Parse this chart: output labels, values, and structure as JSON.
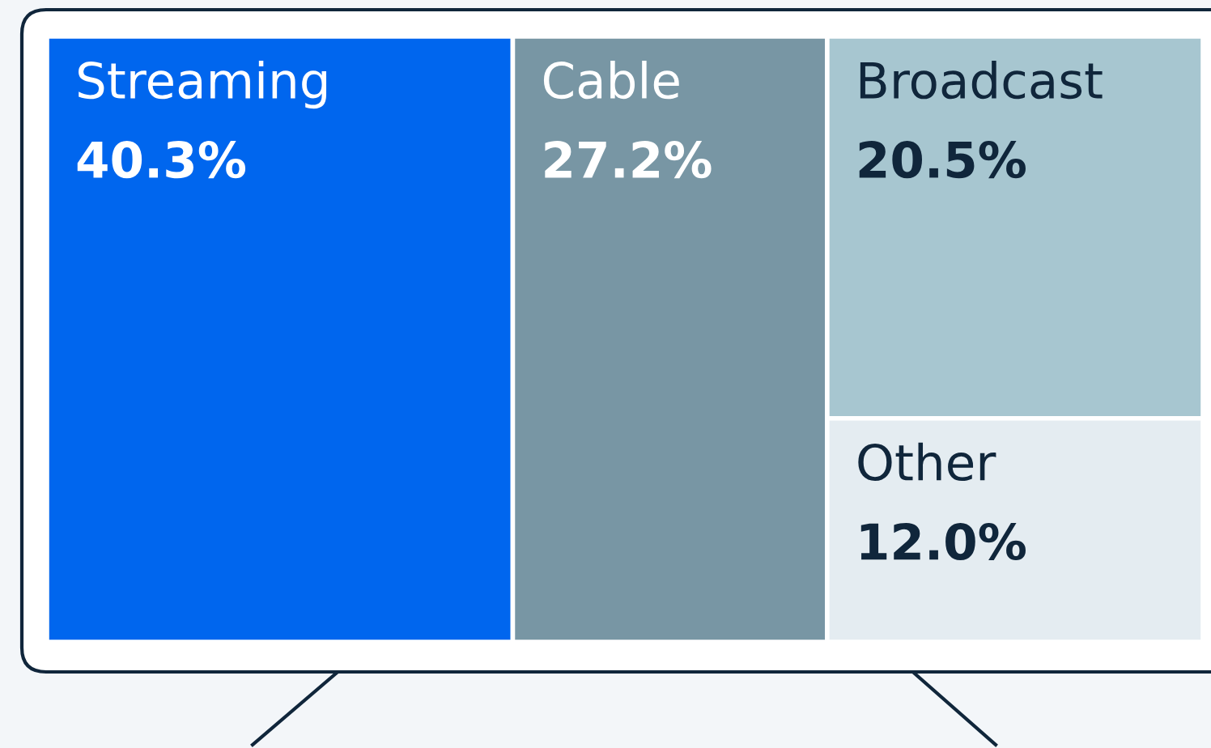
{
  "chart_data": {
    "type": "other",
    "categories": [
      "Streaming",
      "Cable",
      "Broadcast",
      "Other"
    ],
    "values": [
      40.3,
      27.2,
      20.5,
      12.0
    ],
    "value_labels": [
      "40.3%",
      "27.2%",
      "20.5%",
      "12.0%"
    ],
    "colors": [
      "#0066ee",
      "#7896a4",
      "#a7c6d0",
      "#e4ecf1"
    ]
  }
}
